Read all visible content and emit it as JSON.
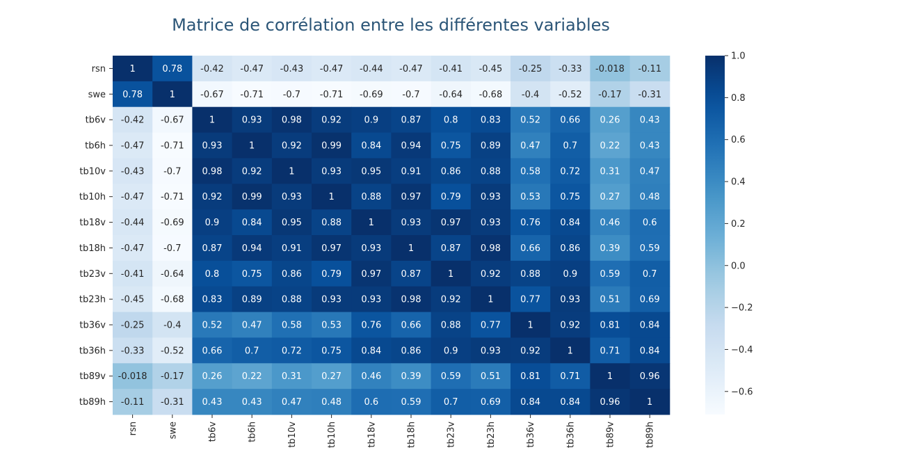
{
  "chart_data": {
    "type": "heatmap",
    "title": "Matrice de corrélation entre les différentes variables",
    "rows": [
      "rsn",
      "swe",
      "tb6v",
      "tb6h",
      "tb10v",
      "tb10h",
      "tb18v",
      "tb18h",
      "tb23v",
      "tb23h",
      "tb36v",
      "tb36h",
      "tb89v",
      "tb89h"
    ],
    "columns": [
      "rsn",
      "swe",
      "tb6v",
      "tb6h",
      "tb10v",
      "tb10h",
      "tb18v",
      "tb18h",
      "tb23v",
      "tb23h",
      "tb36v",
      "tb36h",
      "tb89v",
      "tb89h"
    ],
    "values": [
      [
        1,
        0.78,
        -0.42,
        -0.47,
        -0.43,
        -0.47,
        -0.44,
        -0.47,
        -0.41,
        -0.45,
        -0.25,
        -0.33,
        -0.018,
        -0.11
      ],
      [
        0.78,
        1,
        -0.67,
        -0.71,
        -0.7,
        -0.71,
        -0.69,
        -0.7,
        -0.64,
        -0.68,
        -0.4,
        -0.52,
        -0.17,
        -0.31
      ],
      [
        -0.42,
        -0.67,
        1,
        0.93,
        0.98,
        0.92,
        0.9,
        0.87,
        0.8,
        0.83,
        0.52,
        0.66,
        0.26,
        0.43
      ],
      [
        -0.47,
        -0.71,
        0.93,
        1,
        0.92,
        0.99,
        0.84,
        0.94,
        0.75,
        0.89,
        0.47,
        0.7,
        0.22,
        0.43
      ],
      [
        -0.43,
        -0.7,
        0.98,
        0.92,
        1,
        0.93,
        0.95,
        0.91,
        0.86,
        0.88,
        0.58,
        0.72,
        0.31,
        0.47
      ],
      [
        -0.47,
        -0.71,
        0.92,
        0.99,
        0.93,
        1,
        0.88,
        0.97,
        0.79,
        0.93,
        0.53,
        0.75,
        0.27,
        0.48
      ],
      [
        -0.44,
        -0.69,
        0.9,
        0.84,
        0.95,
        0.88,
        1,
        0.93,
        0.97,
        0.93,
        0.76,
        0.84,
        0.46,
        0.6
      ],
      [
        -0.47,
        -0.7,
        0.87,
        0.94,
        0.91,
        0.97,
        0.93,
        1,
        0.87,
        0.98,
        0.66,
        0.86,
        0.39,
        0.59
      ],
      [
        -0.41,
        -0.64,
        0.8,
        0.75,
        0.86,
        0.79,
        0.97,
        0.87,
        1,
        0.92,
        0.88,
        0.9,
        0.59,
        0.7
      ],
      [
        -0.45,
        -0.68,
        0.83,
        0.89,
        0.88,
        0.93,
        0.93,
        0.98,
        0.92,
        1,
        0.77,
        0.93,
        0.51,
        0.69
      ],
      [
        -0.25,
        -0.4,
        0.52,
        0.47,
        0.58,
        0.53,
        0.76,
        0.66,
        0.88,
        0.77,
        1,
        0.92,
        0.81,
        0.84
      ],
      [
        -0.33,
        -0.52,
        0.66,
        0.7,
        0.72,
        0.75,
        0.84,
        0.86,
        0.9,
        0.93,
        0.92,
        1,
        0.71,
        0.84
      ],
      [
        -0.018,
        -0.17,
        0.26,
        0.22,
        0.31,
        0.27,
        0.46,
        0.39,
        0.59,
        0.51,
        0.81,
        0.71,
        1,
        0.96
      ],
      [
        -0.11,
        -0.31,
        0.43,
        0.43,
        0.47,
        0.48,
        0.6,
        0.59,
        0.7,
        0.69,
        0.84,
        0.84,
        0.96,
        1
      ]
    ],
    "colormap": "Blues",
    "vmin": -0.71,
    "vmax": 1.0,
    "colorbar_ticks": [
      1.0,
      0.8,
      0.6,
      0.4,
      0.2,
      0.0,
      -0.2,
      -0.4,
      -0.6
    ],
    "colorbar_tick_labels": [
      "1.0",
      "0.8",
      "0.6",
      "0.4",
      "0.2",
      "0.0",
      "−0.2",
      "−0.4",
      "−0.6"
    ],
    "grid": false,
    "colors": {
      "title": "#2b5577",
      "text_dark": "#262626",
      "text_light": "#ffffff"
    }
  }
}
